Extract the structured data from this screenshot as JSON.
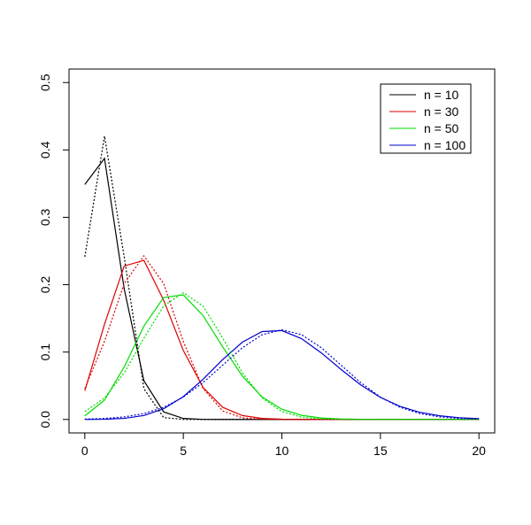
{
  "chart_data": {
    "type": "line",
    "x": [
      0,
      1,
      2,
      3,
      4,
      5,
      6,
      7,
      8,
      9,
      10,
      11,
      12,
      13,
      14,
      15,
      16,
      17,
      18,
      19,
      20
    ],
    "series": [
      {
        "name": "n = 10",
        "color": "#000000",
        "values": [
          0.3487,
          0.3874,
          0.1937,
          0.0574,
          0.0112,
          0.0015,
          0.0001,
          0,
          0,
          0,
          0,
          0,
          0,
          0,
          0,
          0,
          0,
          0,
          0,
          0,
          0
        ]
      },
      {
        "name": "n = 30",
        "color": "#dd0000",
        "values": [
          0.0424,
          0.1413,
          0.2277,
          0.2361,
          0.1771,
          0.1023,
          0.0474,
          0.018,
          0.00576,
          0.00156,
          0.00036,
          7e-05,
          0,
          0,
          0,
          0,
          0,
          0,
          0,
          0,
          0
        ]
      },
      {
        "name": "n = 50",
        "color": "#00dd00",
        "values": [
          0.00515,
          0.0286,
          0.0779,
          0.1386,
          0.1809,
          0.1849,
          0.1541,
          0.1076,
          0.0643,
          0.0333,
          0.0152,
          0.00613,
          0.00221,
          0.00072,
          0.00021,
          6e-05,
          0,
          0,
          0,
          0,
          0
        ]
      },
      {
        "name": "n = 100",
        "color": "#0000cc",
        "values": [
          3e-05,
          0.000295,
          0.00162,
          0.00589,
          0.01587,
          0.03387,
          0.05958,
          0.0889,
          0.1148,
          0.1304,
          0.1319,
          0.1199,
          0.0988,
          0.0743,
          0.0513,
          0.0327,
          0.0193,
          0.0106,
          0.00543,
          0.0026,
          0.00117
        ]
      },
      {
        "color": "#000000",
        "dashed": true,
        "values": [
          0.2413,
          0.4205,
          0.2413,
          0.0456,
          0.0028,
          6e-05,
          0,
          0,
          0,
          0,
          0,
          0,
          0,
          0,
          0,
          0,
          0,
          0,
          0,
          0,
          0
        ]
      },
      {
        "color": "#dd0000",
        "dashed": true,
        "values": [
          0.0459,
          0.1158,
          0.2017,
          0.2428,
          0.2017,
          0.1158,
          0.0459,
          0.01256,
          0.00237,
          0.00031,
          3e-05,
          0,
          0,
          0,
          0,
          0,
          0,
          0,
          0,
          0,
          0
        ]
      },
      {
        "color": "#00dd00",
        "dashed": true,
        "values": [
          0.0117,
          0.0318,
          0.0692,
          0.1206,
          0.1683,
          0.1881,
          0.1683,
          0.1206,
          0.0692,
          0.0318,
          0.0117,
          0.00344,
          0.00081,
          0.00015,
          2e-05,
          0,
          0,
          0,
          0,
          0,
          0
        ]
      },
      {
        "color": "#0000cc",
        "dashed": true,
        "values": [
          0.00051,
          0.00148,
          0.0038,
          0.00874,
          0.018,
          0.0332,
          0.0547,
          0.0807,
          0.1065,
          0.1258,
          0.133,
          0.1258,
          0.1065,
          0.0807,
          0.0547,
          0.0332,
          0.018,
          0.00874,
          0.0038,
          0.00148,
          0.00051
        ]
      }
    ],
    "xlim": [
      -0.8,
      20.8
    ],
    "ylim": [
      -0.02,
      0.52
    ],
    "xticks": [
      0,
      5,
      10,
      15,
      20
    ],
    "yticks": [
      {
        "value": 0,
        "label": "0.0"
      },
      {
        "value": 0.1,
        "label": "0.1"
      },
      {
        "value": 0.2,
        "label": "0.2"
      },
      {
        "value": 0.3,
        "label": "0.3"
      },
      {
        "value": 0.4,
        "label": "0.4"
      },
      {
        "value": 0.5,
        "label": "0.5"
      }
    ],
    "legend": "top-right"
  }
}
